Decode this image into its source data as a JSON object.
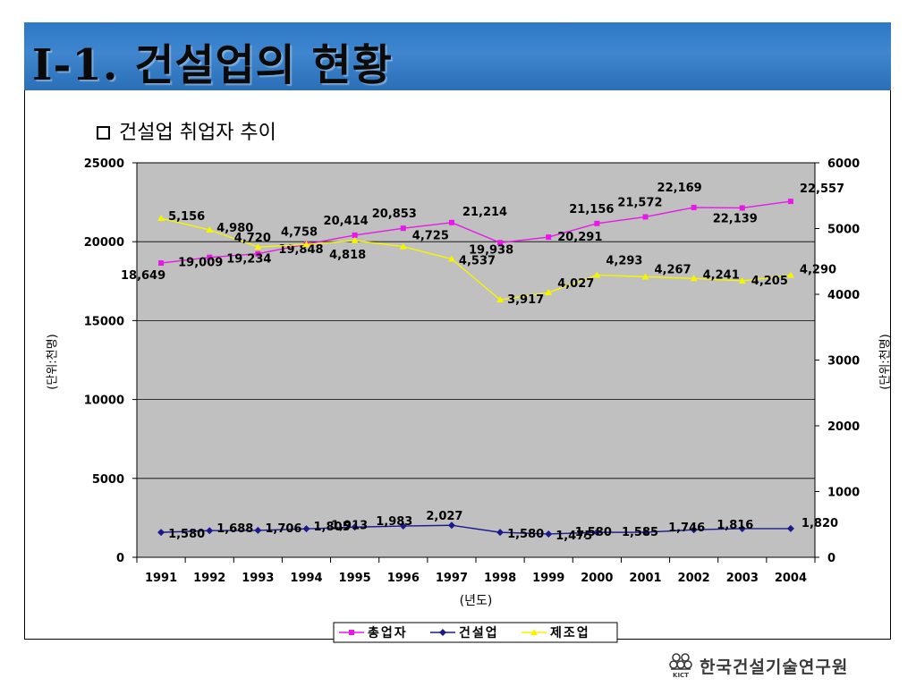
{
  "slide": {
    "title": "I-1. 건설업의 현황",
    "subtitle": "건설업 취업자 추이",
    "logo_text": "한국건설기술연구원",
    "logo_abbr": "KICT"
  },
  "chart_data": {
    "type": "line",
    "categories": [
      "1991",
      "1992",
      "1993",
      "1994",
      "1995",
      "1996",
      "1997",
      "1998",
      "1999",
      "2000",
      "2001",
      "2002",
      "2003",
      "2004"
    ],
    "xlabel": "(년도)",
    "ylabel_left": "(단위:천명)",
    "ylabel_right": "(단위:천명)",
    "ylim_left": [
      0,
      25000
    ],
    "yticks_left": [
      0,
      5000,
      10000,
      15000,
      20000,
      25000
    ],
    "ylim_right": [
      0,
      6000
    ],
    "yticks_right": [
      0,
      1000,
      2000,
      3000,
      4000,
      5000,
      6000
    ],
    "grid": true,
    "legend_position": "bottom",
    "plot_background": "#c0c0c0",
    "series": [
      {
        "name": "총업자",
        "axis": "left",
        "color": "#e619e6",
        "marker": "square",
        "values": [
          18649,
          19009,
          19234,
          19848,
          20414,
          20853,
          21214,
          19938,
          20291,
          21156,
          21572,
          22169,
          22139,
          22557
        ],
        "labels": [
          "18,649",
          "19,009",
          "19,234",
          "19,848",
          "20,414",
          "20,853",
          "21,214",
          "19,938",
          "20,291",
          "21,156",
          "21,572",
          "22,169",
          "22,139",
          "22,557"
        ]
      },
      {
        "name": "건설업",
        "axis": "left",
        "color": "#1a1a8c",
        "marker": "diamond",
        "values": [
          1580,
          1688,
          1706,
          1805,
          1913,
          1983,
          2027,
          1580,
          1475,
          1580,
          1585,
          1746,
          1816,
          1820
        ],
        "labels": [
          "1,580",
          "1,688",
          "1,706",
          "1,805",
          "1,913",
          "1,983",
          "2,027",
          "1,580",
          "1,475",
          "1,580",
          "1,585",
          "1,746",
          "1,816",
          "1,820"
        ]
      },
      {
        "name": "제조업",
        "axis": "right",
        "color": "#f5f500",
        "marker": "triangle",
        "values": [
          5156,
          4980,
          4720,
          4758,
          4818,
          4725,
          4537,
          3917,
          4027,
          4293,
          4267,
          4241,
          4205,
          4290
        ],
        "labels": [
          "5,156",
          "4,980",
          "4,720",
          "4,758",
          "4,818",
          "4,725",
          "4,537",
          "3,917",
          "4,027",
          "4,293",
          "4,267",
          "4,241",
          "4,205",
          "4,290"
        ]
      }
    ]
  }
}
